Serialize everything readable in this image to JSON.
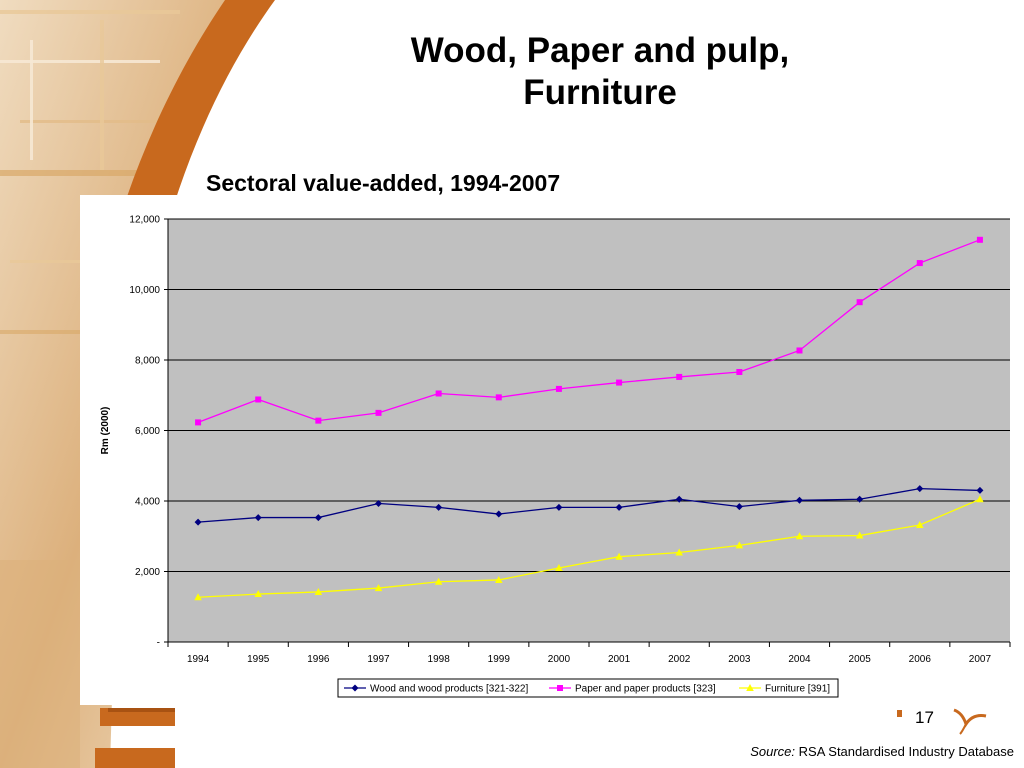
{
  "slide": {
    "title_line1": "Wood, Paper and pulp,",
    "title_line2": "Furniture",
    "subtitle": "Sectoral value-added, 1994-2007",
    "page_number": "17",
    "source_label": "Source:",
    "source_text": " RSA Standardised Industry Database",
    "accent_color": "#c8691e"
  },
  "chart_data": {
    "type": "line",
    "title": "",
    "xlabel": "",
    "ylabel": "Rm (2000)",
    "ylim": [
      0,
      12000
    ],
    "yticks": [
      0,
      2000,
      4000,
      6000,
      8000,
      10000,
      12000
    ],
    "ytick_labels": [
      "-",
      "2,000",
      "4,000",
      "6,000",
      "8,000",
      "10,000",
      "12,000"
    ],
    "categories": [
      "1994",
      "1995",
      "1996",
      "1997",
      "1998",
      "1999",
      "2000",
      "2001",
      "2002",
      "2003",
      "2004",
      "2005",
      "2006",
      "2007"
    ],
    "grid": true,
    "legend_position": "bottom",
    "plot_background": "#c0c0c0",
    "series": [
      {
        "name": "Wood and wood products [321-322]",
        "color": "#000080",
        "marker": "diamond",
        "values": [
          3400,
          3530,
          3530,
          3930,
          3820,
          3630,
          3820,
          3820,
          4050,
          3840,
          4020,
          4050,
          4350,
          4300
        ]
      },
      {
        "name": "Paper and paper products [323]",
        "color": "#ff00ff",
        "marker": "square",
        "values": [
          6230,
          6880,
          6280,
          6500,
          7050,
          6940,
          7180,
          7360,
          7520,
          7660,
          8270,
          9640,
          10750,
          11410
        ]
      },
      {
        "name": "Furniture [391]",
        "color": "#ffff00",
        "marker": "triangle",
        "values": [
          1270,
          1360,
          1420,
          1530,
          1710,
          1760,
          2100,
          2420,
          2540,
          2740,
          3000,
          3020,
          3320,
          4050
        ]
      }
    ]
  }
}
